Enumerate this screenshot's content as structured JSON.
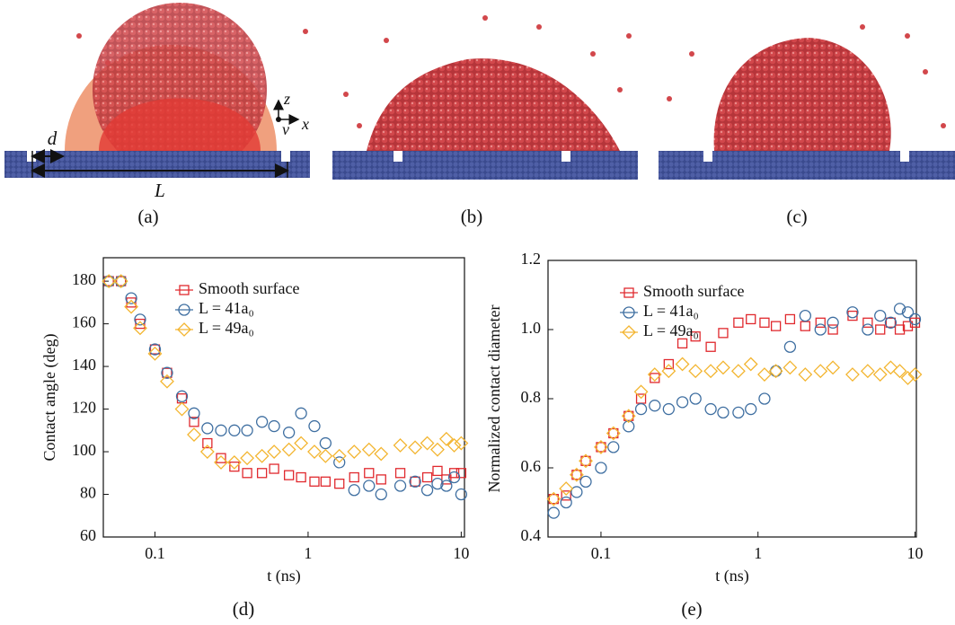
{
  "figure": {
    "panel_labels": [
      "(a)",
      "(b)",
      "(c)"
    ],
    "annotations": {
      "d": "d",
      "L": "L",
      "z": "z",
      "v": "v",
      "x": "x"
    }
  },
  "chart_data": [
    {
      "type": "scatter",
      "label": "(d)",
      "xlabel": "t (ns)",
      "ylabel": "Contact angle (deg)",
      "xscale": "log",
      "xlim": [
        0.046,
        10.5
      ],
      "ylim": [
        60,
        191
      ],
      "xticks": [
        0.1,
        1,
        10
      ],
      "yticks": [
        60,
        80,
        100,
        120,
        140,
        160,
        180
      ],
      "legend": "upper left",
      "x": [
        0.05,
        0.06,
        0.07,
        0.08,
        0.1,
        0.12,
        0.15,
        0.18,
        0.22,
        0.27,
        0.33,
        0.4,
        0.5,
        0.6,
        0.75,
        0.9,
        1.1,
        1.3,
        1.6,
        2,
        2.5,
        3,
        4,
        5,
        6,
        7,
        8,
        9,
        10
      ],
      "series": [
        {
          "name": "Smooth surface",
          "color": "#e0292e",
          "marker": "square",
          "values": [
            180,
            180,
            170,
            160,
            148,
            137,
            125,
            114,
            104,
            97,
            93,
            90,
            90,
            92,
            89,
            88,
            86,
            86,
            85,
            88,
            90,
            87,
            90,
            86,
            88,
            91,
            87,
            90,
            90
          ]
        },
        {
          "name": "L = 41a₀",
          "color": "#3f6fa1",
          "marker": "circle",
          "values": [
            180,
            180,
            172,
            162,
            148,
            137,
            126,
            118,
            111,
            110,
            110,
            110,
            114,
            112,
            109,
            118,
            112,
            104,
            95,
            82,
            84,
            80,
            84,
            86,
            82,
            85,
            84,
            88,
            80
          ]
        },
        {
          "name": "L = 49a₀",
          "color": "#f3b530",
          "marker": "diamond",
          "values": [
            180,
            180,
            168,
            158,
            146,
            133,
            120,
            108,
            100,
            95,
            95,
            97,
            98,
            100,
            101,
            104,
            100,
            98,
            98,
            100,
            101,
            99,
            103,
            102,
            104,
            101,
            106,
            103,
            104
          ]
        }
      ]
    },
    {
      "type": "scatter",
      "label": "(e)",
      "xlabel": "t (ns)",
      "ylabel": "Normalized contact diameter",
      "xscale": "log",
      "xlim": [
        0.046,
        10.2
      ],
      "ylim": [
        0.4,
        1.2
      ],
      "xticks": [
        0.1,
        1,
        10
      ],
      "yticks": [
        0.4,
        0.6,
        0.8,
        {
          "value": 1,
          "label": "1.0"
        },
        1.2
      ],
      "legend": "upper left",
      "x": [
        0.05,
        0.06,
        0.07,
        0.08,
        0.1,
        0.12,
        0.15,
        0.18,
        0.22,
        0.27,
        0.33,
        0.4,
        0.5,
        0.6,
        0.75,
        0.9,
        1.1,
        1.3,
        1.6,
        2,
        2.5,
        3,
        4,
        5,
        6,
        7,
        8,
        9,
        10
      ],
      "series": [
        {
          "name": "Smooth surface",
          "color": "#e0292e",
          "marker": "square",
          "values": [
            0.51,
            0.52,
            0.58,
            0.62,
            0.66,
            0.7,
            0.75,
            0.8,
            0.86,
            0.9,
            0.96,
            0.98,
            0.95,
            0.99,
            1.02,
            1.03,
            1.02,
            1.01,
            1.03,
            1.01,
            1.02,
            1.0,
            1.04,
            1.02,
            1.0,
            1.02,
            1.0,
            1.01,
            1.02
          ]
        },
        {
          "name": "L = 41a₀",
          "color": "#3f6fa1",
          "marker": "circle",
          "values": [
            0.47,
            0.5,
            0.53,
            0.56,
            0.6,
            0.66,
            0.72,
            0.77,
            0.78,
            0.77,
            0.79,
            0.8,
            0.77,
            0.76,
            0.76,
            0.77,
            0.8,
            0.88,
            0.95,
            1.04,
            1.0,
            1.02,
            1.05,
            1.0,
            1.04,
            1.02,
            1.06,
            1.05,
            1.03
          ]
        },
        {
          "name": "L = 49a₀",
          "color": "#f3b530",
          "marker": "diamond",
          "values": [
            0.51,
            0.54,
            0.58,
            0.62,
            0.66,
            0.7,
            0.75,
            0.82,
            0.87,
            0.88,
            0.9,
            0.88,
            0.88,
            0.89,
            0.88,
            0.9,
            0.87,
            0.88,
            0.89,
            0.87,
            0.88,
            0.89,
            0.87,
            0.88,
            0.87,
            0.89,
            0.88,
            0.86,
            0.87
          ]
        }
      ]
    }
  ]
}
